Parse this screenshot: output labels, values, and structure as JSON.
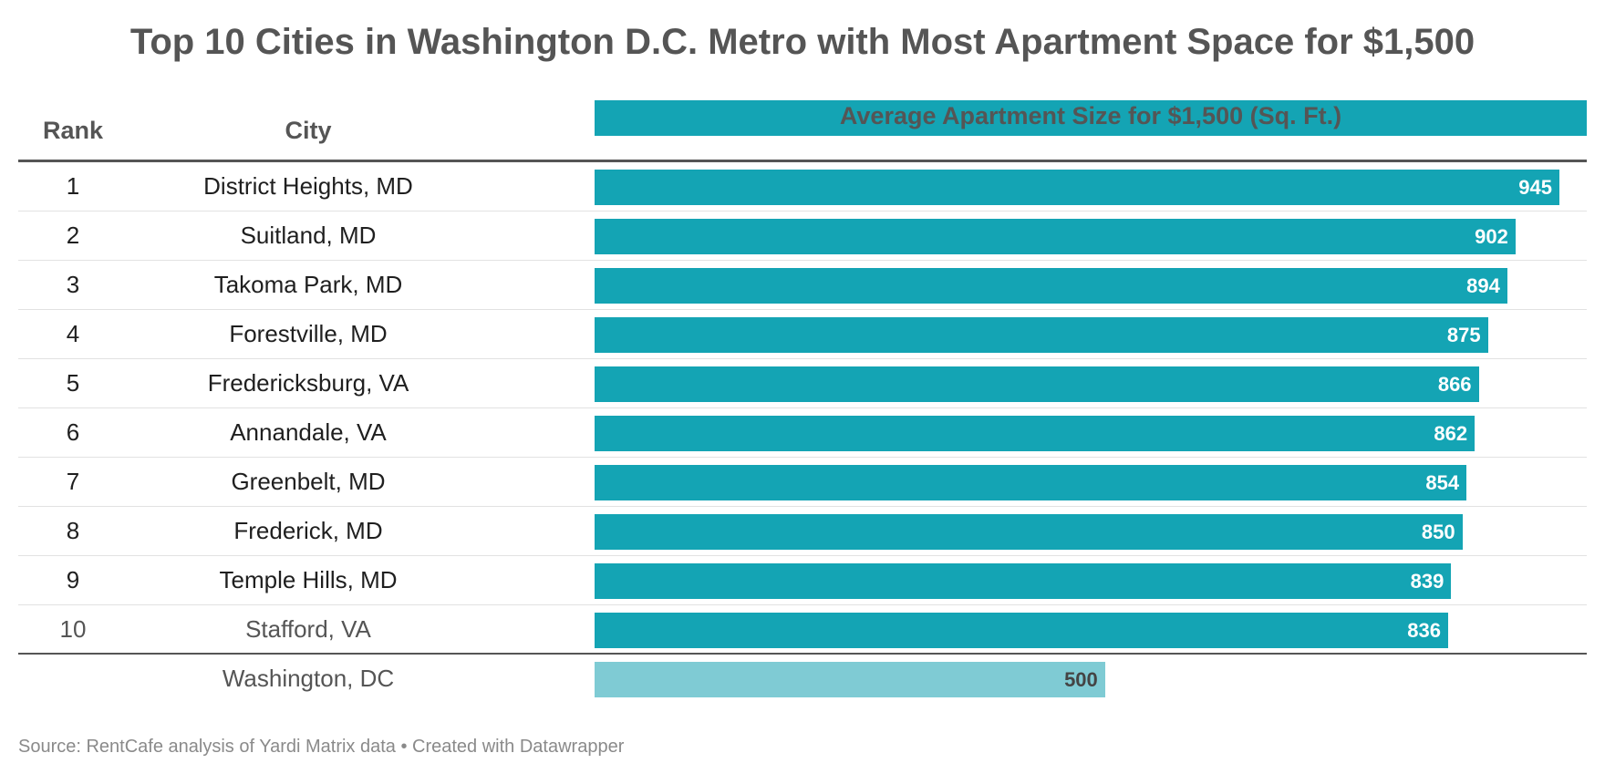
{
  "title": "Top 10 Cities in Washington D.C. Metro with Most Apartment Space for $1,500",
  "headers": {
    "rank": "Rank",
    "city": "City",
    "value": "Average Apartment Size for $1,500 (Sq. Ft.)"
  },
  "colors": {
    "bar": "#14a4b4",
    "reference_bar": "#7fcbd4",
    "title": "#555555"
  },
  "chart_data": {
    "type": "bar",
    "orientation": "horizontal",
    "title": "Top 10 Cities in Washington D.C. Metro with Most Apartment Space for $1,500",
    "xlabel": "Average Apartment Size for $1,500 (Sq. Ft.)",
    "ylabel": "",
    "xlim": [
      0,
      945
    ],
    "rows": [
      {
        "rank": "1",
        "city": "District Heights, MD",
        "value": 945
      },
      {
        "rank": "2",
        "city": "Suitland, MD",
        "value": 902
      },
      {
        "rank": "3",
        "city": "Takoma Park, MD",
        "value": 894
      },
      {
        "rank": "4",
        "city": "Forestville, MD",
        "value": 875
      },
      {
        "rank": "5",
        "city": "Fredericksburg, VA",
        "value": 866
      },
      {
        "rank": "6",
        "city": "Annandale, VA",
        "value": 862
      },
      {
        "rank": "7",
        "city": "Greenbelt, MD",
        "value": 854
      },
      {
        "rank": "8",
        "city": "Frederick, MD",
        "value": 850
      },
      {
        "rank": "9",
        "city": "Temple Hills, MD",
        "value": 839
      },
      {
        "rank": "10",
        "city": "Stafford, VA",
        "value": 836
      }
    ],
    "reference": {
      "rank": "",
      "city": "Washington, DC",
      "value": 500
    }
  },
  "source": "Source: RentCafe analysis of Yardi Matrix data • Created with Datawrapper"
}
